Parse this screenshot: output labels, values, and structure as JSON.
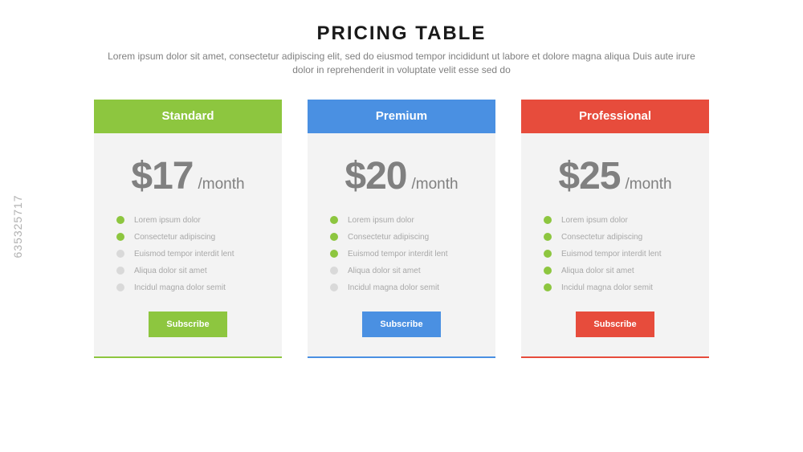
{
  "header": {
    "title": "PRICING TABLE",
    "subtitle": "Lorem ipsum dolor sit amet, consectetur adipiscing elit, sed do eiusmod tempor incididunt ut labore et dolore magna aliqua Duis aute irure dolor in reprehenderit in voluptate velit esse sed do"
  },
  "colors": {
    "inactive_bullet": "#d9d9d9",
    "active_bullet": "#8dc63f"
  },
  "plans": [
    {
      "name": "Standard",
      "color": "#8dc63f",
      "price": "$17",
      "per": "/month",
      "button": "Subscribe",
      "features": [
        {
          "text": "Lorem ipsum dolor",
          "active": true
        },
        {
          "text": "Consectetur adipiscing",
          "active": true
        },
        {
          "text": "Euismod tempor interdit lent",
          "active": false
        },
        {
          "text": "Aliqua dolor sit amet",
          "active": false
        },
        {
          "text": "Incidul magna dolor semit",
          "active": false
        }
      ]
    },
    {
      "name": "Premium",
      "color": "#4a90e2",
      "price": "$20",
      "per": "/month",
      "button": "Subscribe",
      "features": [
        {
          "text": "Lorem ipsum dolor",
          "active": true
        },
        {
          "text": "Consectetur adipiscing",
          "active": true
        },
        {
          "text": "Euismod tempor interdit lent",
          "active": true
        },
        {
          "text": "Aliqua dolor sit amet",
          "active": false
        },
        {
          "text": "Incidul magna dolor semit",
          "active": false
        }
      ]
    },
    {
      "name": "Professional",
      "color": "#e74c3c",
      "price": "$25",
      "per": "/month",
      "button": "Subscribe",
      "features": [
        {
          "text": "Lorem ipsum dolor",
          "active": true
        },
        {
          "text": "Consectetur adipiscing",
          "active": true
        },
        {
          "text": "Euismod tempor interdit lent",
          "active": true
        },
        {
          "text": "Aliqua dolor sit amet",
          "active": true
        },
        {
          "text": "Incidul magna dolor semit",
          "active": true
        }
      ]
    }
  ],
  "watermark": "635325717"
}
